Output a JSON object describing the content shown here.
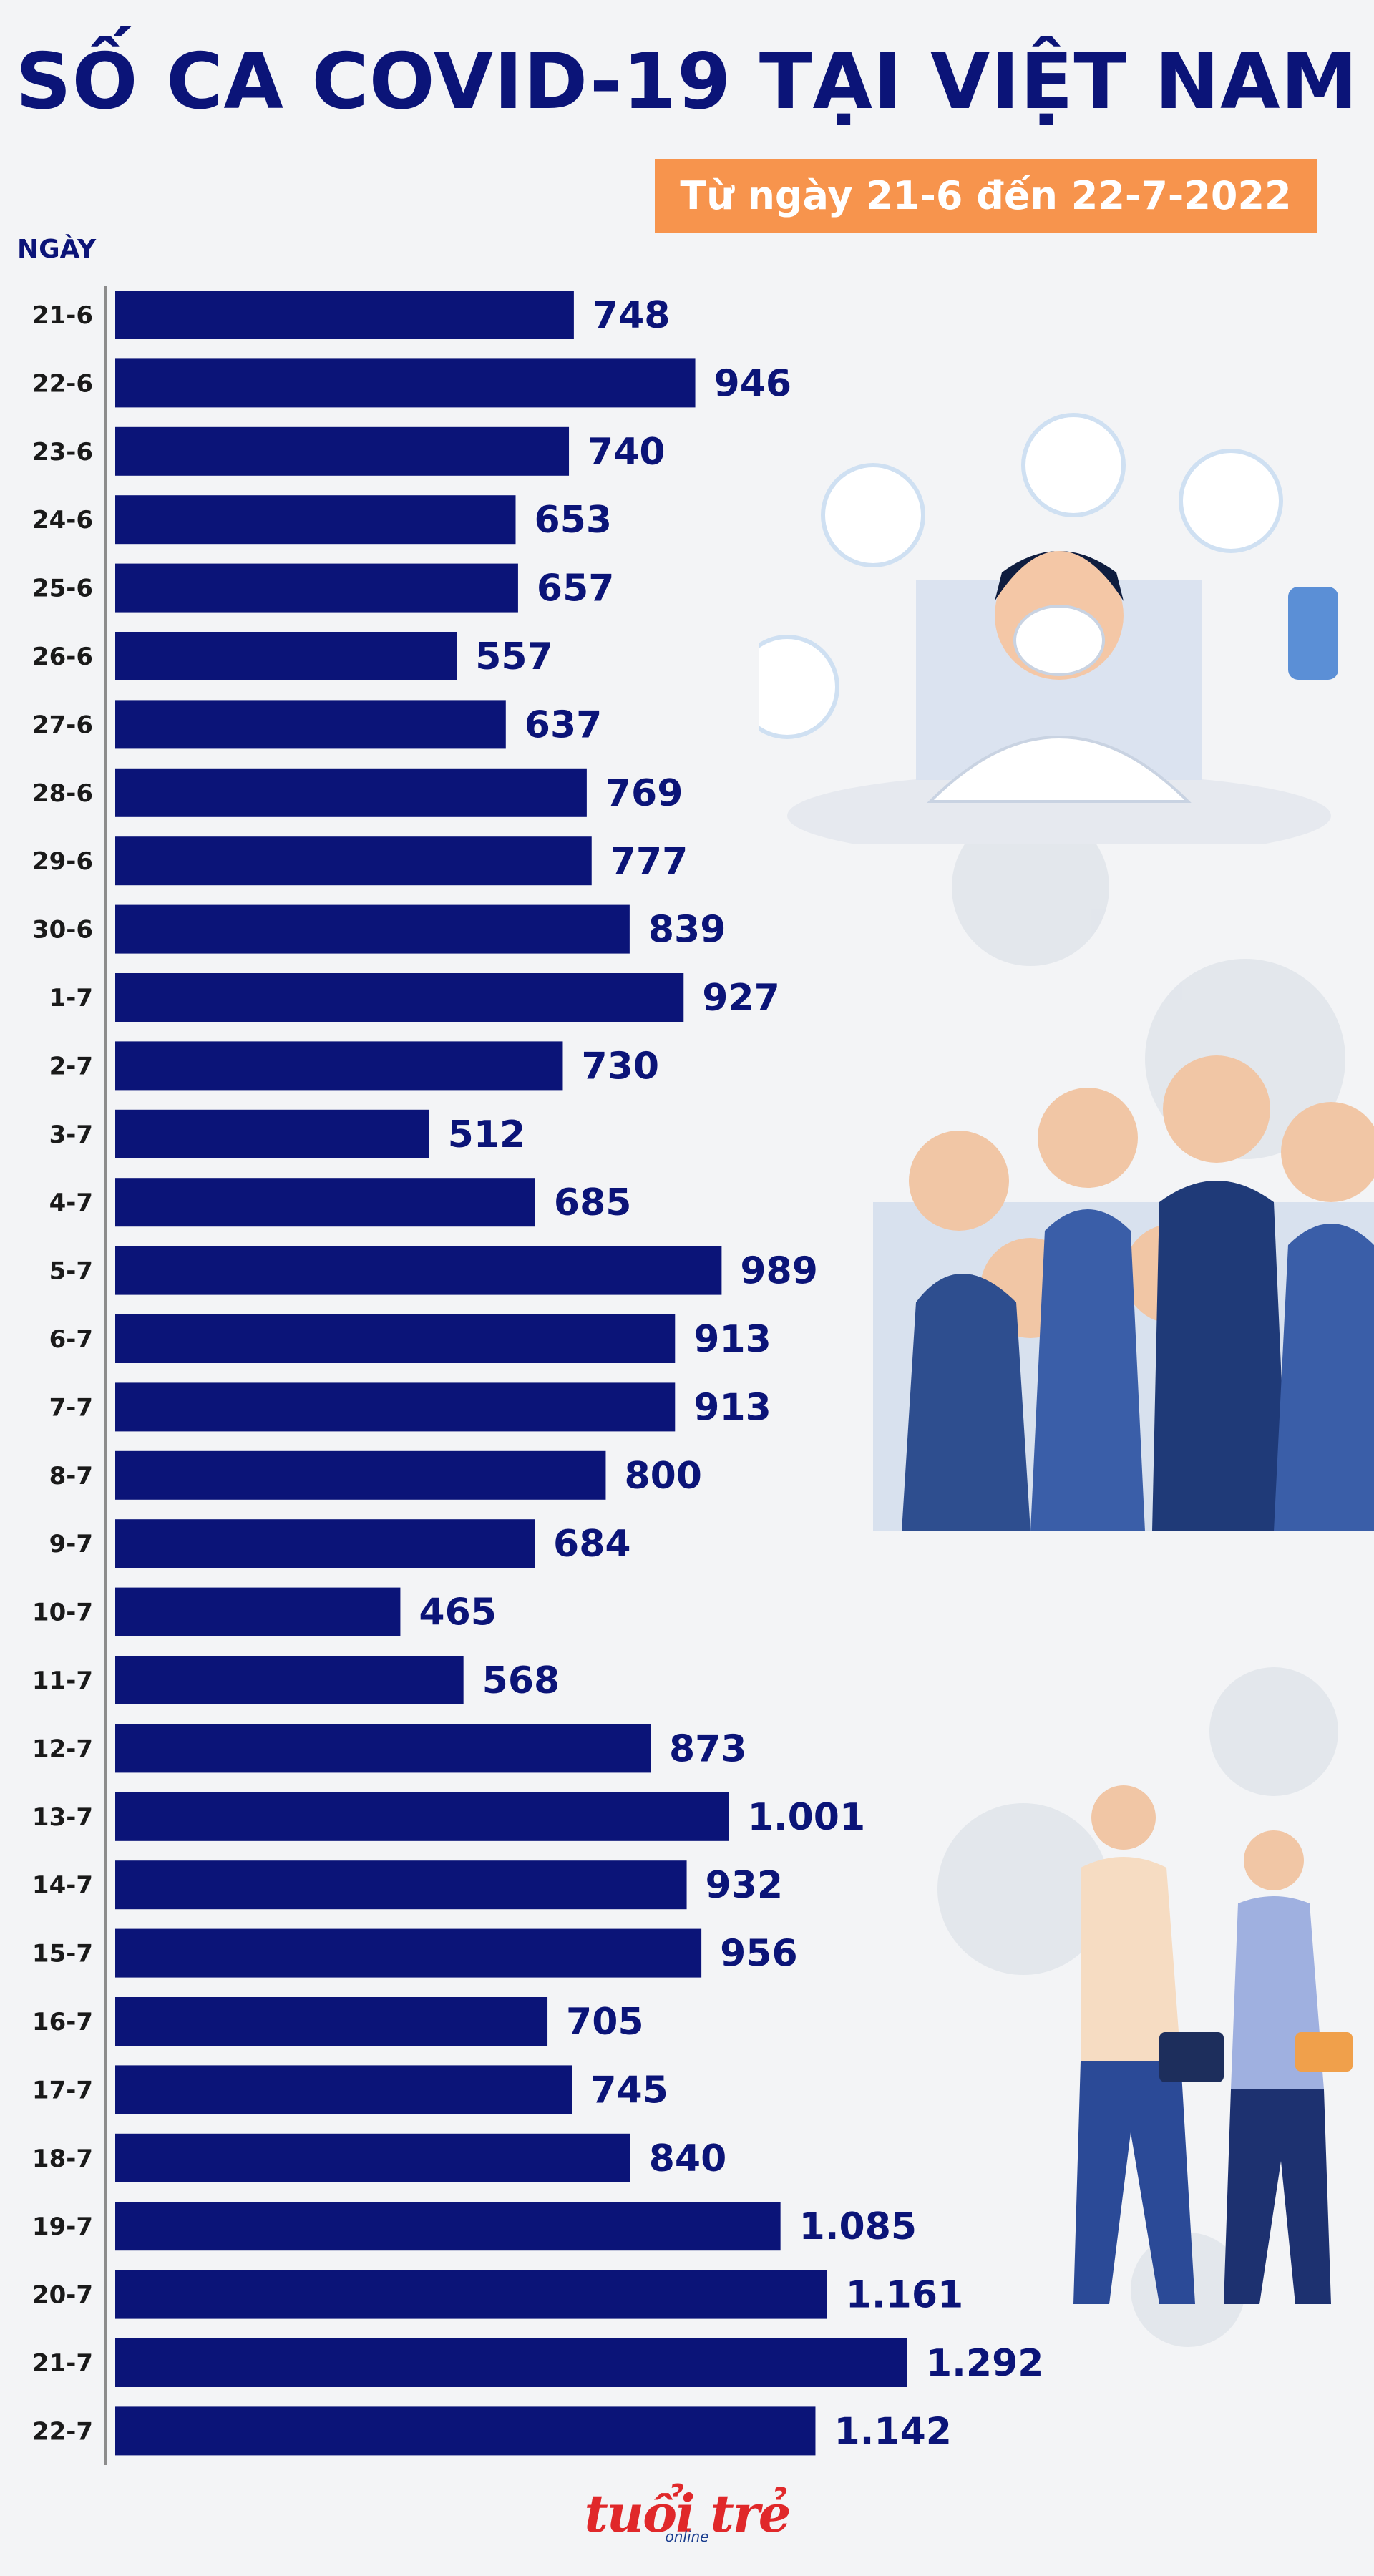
{
  "header": {
    "title": "SỐ CA COVID-19 TẠI VIỆT NAM",
    "subtitle": "Từ ngày 21-6 đến 22-7-2022"
  },
  "chart_data": {
    "type": "bar",
    "orientation": "horizontal",
    "title": "SỐ CA COVID-19 TẠI VIỆT NAM",
    "subtitle": "Từ ngày 21-6 đến 22-7-2022",
    "ylabel": "NGÀY",
    "xlim": [
      0,
      1300
    ],
    "bar_color": "#0b1478",
    "categories": [
      "21-6",
      "22-6",
      "23-6",
      "24-6",
      "25-6",
      "26-6",
      "27-6",
      "28-6",
      "29-6",
      "30-6",
      "1-7",
      "2-7",
      "3-7",
      "4-7",
      "5-7",
      "6-7",
      "7-7",
      "8-7",
      "9-7",
      "10-7",
      "11-7",
      "12-7",
      "13-7",
      "14-7",
      "15-7",
      "16-7",
      "17-7",
      "18-7",
      "19-7",
      "20-7",
      "21-7",
      "22-7"
    ],
    "values": [
      748,
      946,
      740,
      653,
      657,
      557,
      637,
      769,
      777,
      839,
      927,
      730,
      512,
      685,
      989,
      913,
      913,
      800,
      684,
      465,
      568,
      873,
      1001,
      932,
      956,
      705,
      745,
      840,
      1085,
      1161,
      1292,
      1142
    ],
    "value_labels": [
      "748",
      "946",
      "740",
      "653",
      "657",
      "557",
      "637",
      "769",
      "777",
      "839",
      "927",
      "730",
      "512",
      "685",
      "989",
      "913",
      "913",
      "800",
      "684",
      "465",
      "568",
      "873",
      "1.001",
      "932",
      "956",
      "705",
      "745",
      "840",
      "1.085",
      "1.161",
      "1.292",
      "1.142"
    ]
  },
  "decorations": {
    "illustration_top": "doctor-with-mask-icon",
    "illustration_middle": "crowd-with-masks-icon",
    "illustration_bottom": "couple-walking-icon",
    "background_pattern": "virus-icon"
  },
  "footer": {
    "logo_text": "tuổi trẻ",
    "logo_sub": "online"
  }
}
